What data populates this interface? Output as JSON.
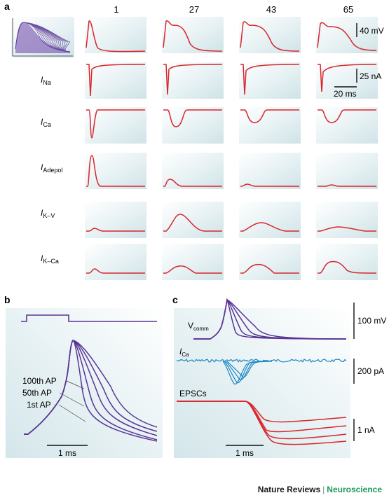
{
  "panel_labels": {
    "a": "a",
    "b": "b",
    "c": "c"
  },
  "panel_a": {
    "columns": [
      "1",
      "27",
      "43",
      "65"
    ],
    "rows": [
      {
        "label": "I",
        "sub": "Na"
      },
      {
        "label": "I",
        "sub": "Ca"
      },
      {
        "label": "I",
        "sub": "Adepol"
      },
      {
        "label": "I",
        "sub": "K–V"
      },
      {
        "label": "I",
        "sub": "K–Ca"
      }
    ],
    "scale_bars": {
      "voltage": "40 mV",
      "current": "25 nA",
      "time": "20 ms"
    }
  },
  "panel_b": {
    "ap_labels": [
      "100th AP",
      "50th AP",
      "1st AP"
    ],
    "time_scale": "1 ms"
  },
  "panel_c": {
    "traces": [
      {
        "label": "V",
        "sub": "comm"
      },
      {
        "label": "I",
        "sub": "Ca"
      },
      {
        "label": "EPSCs",
        "sub": ""
      }
    ],
    "scale_bars": {
      "voltage": "100 mV",
      "current": "200 pA",
      "current2": "1 nA",
      "time": "1 ms"
    }
  },
  "credit": {
    "journal": "Nature Reviews",
    "separator": "|",
    "discipline": "Neuroscience"
  },
  "colors": {
    "trace_red": "#d8262d",
    "trace_purple": "#5a3596",
    "trace_blue": "#1a86c3",
    "panel_bg": "#dcecef"
  }
}
